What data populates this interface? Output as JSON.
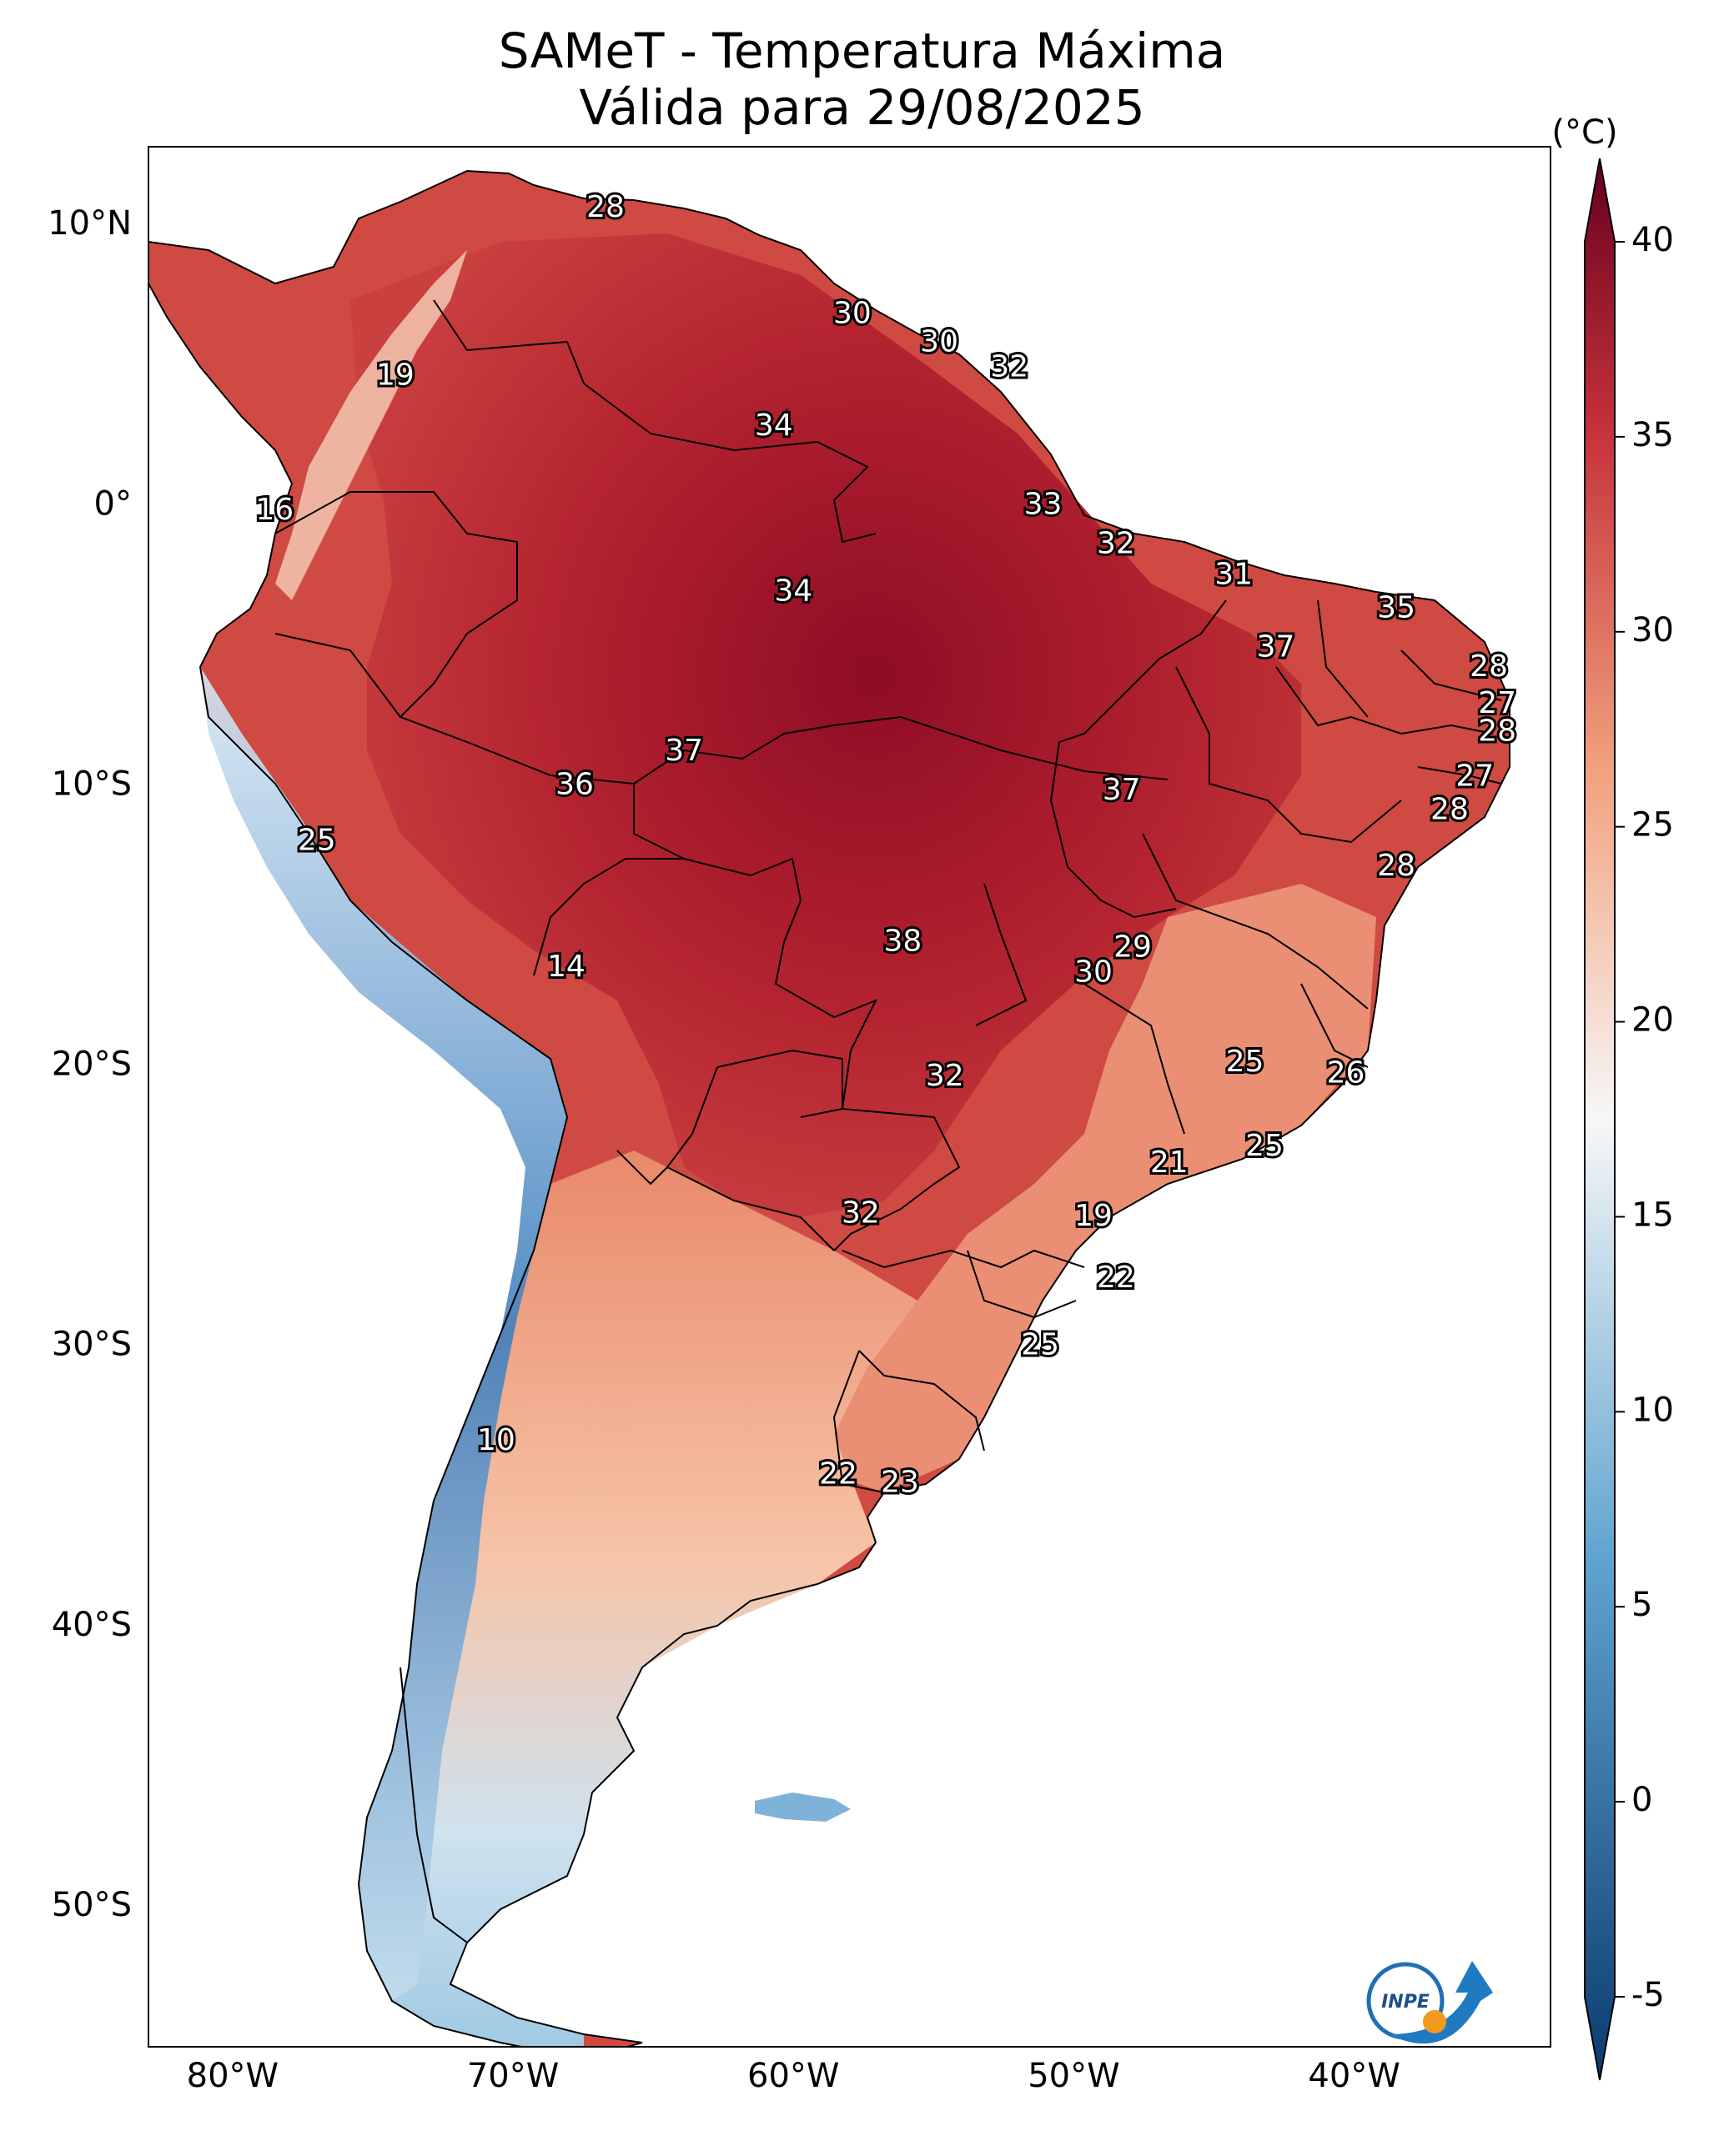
{
  "title": {
    "line1": "SAMeT - Temperatura Máxima",
    "line2": "Válida para 29/08/2025"
  },
  "colorbar": {
    "unit": "(°C)",
    "min": -5,
    "max": 40,
    "ticks": [
      "40",
      "35",
      "30",
      "25",
      "20",
      "15",
      "10",
      "5",
      "0",
      "-5"
    ],
    "colors": {
      "cold": "#0b3a6e",
      "cool": "#5fa3cf",
      "neutral": "#f7f7f7",
      "warm": "#f2a27e",
      "hot": "#c4313a",
      "hottest": "#67001f"
    }
  },
  "axes": {
    "lat_labels": [
      "10°N",
      "0°",
      "10°S",
      "20°S",
      "30°S",
      "40°S",
      "50°S"
    ],
    "lon_labels": [
      "80°W",
      "70°W",
      "60°W",
      "50°W",
      "40°W"
    ]
  },
  "stations": [
    {
      "label": "28",
      "lon": -66.7,
      "lat": 10.6
    },
    {
      "label": "19",
      "lon": -74.2,
      "lat": 4.6
    },
    {
      "label": "30",
      "lon": -57.9,
      "lat": 6.8
    },
    {
      "label": "30",
      "lon": -54.8,
      "lat": 5.8
    },
    {
      "label": "32",
      "lon": -52.3,
      "lat": 4.9
    },
    {
      "label": "34",
      "lon": -60.7,
      "lat": 2.8
    },
    {
      "label": "16",
      "lon": -78.5,
      "lat": -0.2
    },
    {
      "label": "33",
      "lon": -51.1,
      "lat": 0.0
    },
    {
      "label": "32",
      "lon": -48.5,
      "lat": -1.4
    },
    {
      "label": "34",
      "lon": -60.0,
      "lat": -3.1
    },
    {
      "label": "31",
      "lon": -44.3,
      "lat": -2.5
    },
    {
      "label": "35",
      "lon": -38.5,
      "lat": -3.7
    },
    {
      "label": "37",
      "lon": -42.8,
      "lat": -5.1
    },
    {
      "label": "28",
      "lon": -35.2,
      "lat": -5.8
    },
    {
      "label": "27",
      "lon": -34.9,
      "lat": -7.1
    },
    {
      "label": "28",
      "lon": -34.9,
      "lat": -8.1
    },
    {
      "label": "37",
      "lon": -63.9,
      "lat": -8.8
    },
    {
      "label": "36",
      "lon": -67.8,
      "lat": -10.0
    },
    {
      "label": "37",
      "lon": -48.3,
      "lat": -10.2
    },
    {
      "label": "27",
      "lon": -35.7,
      "lat": -9.7
    },
    {
      "label": "28",
      "lon": -36.6,
      "lat": -10.9
    },
    {
      "label": "25",
      "lon": -77.0,
      "lat": -12.0
    },
    {
      "label": "28",
      "lon": -38.5,
      "lat": -12.9
    },
    {
      "label": "38",
      "lon": -56.1,
      "lat": -15.6
    },
    {
      "label": "29",
      "lon": -47.9,
      "lat": -15.8
    },
    {
      "label": "14",
      "lon": -68.1,
      "lat": -16.5
    },
    {
      "label": "30",
      "lon": -49.3,
      "lat": -16.7
    },
    {
      "label": "25",
      "lon": -43.9,
      "lat": -19.9
    },
    {
      "label": "26",
      "lon": -40.3,
      "lat": -20.3
    },
    {
      "label": "32",
      "lon": -54.6,
      "lat": -20.4
    },
    {
      "label": "25",
      "lon": -43.2,
      "lat": -22.9
    },
    {
      "label": "21",
      "lon": -46.6,
      "lat": -23.5
    },
    {
      "label": "32",
      "lon": -57.6,
      "lat": -25.3
    },
    {
      "label": "19",
      "lon": -49.3,
      "lat": -25.4
    },
    {
      "label": "22",
      "lon": -48.5,
      "lat": -27.6
    },
    {
      "label": "25",
      "lon": -51.2,
      "lat": -30.0
    },
    {
      "label": "10",
      "lon": -70.6,
      "lat": -33.4
    },
    {
      "label": "22",
      "lon": -58.4,
      "lat": -34.6
    },
    {
      "label": "23",
      "lon": -56.2,
      "lat": -34.9
    }
  ]
}
